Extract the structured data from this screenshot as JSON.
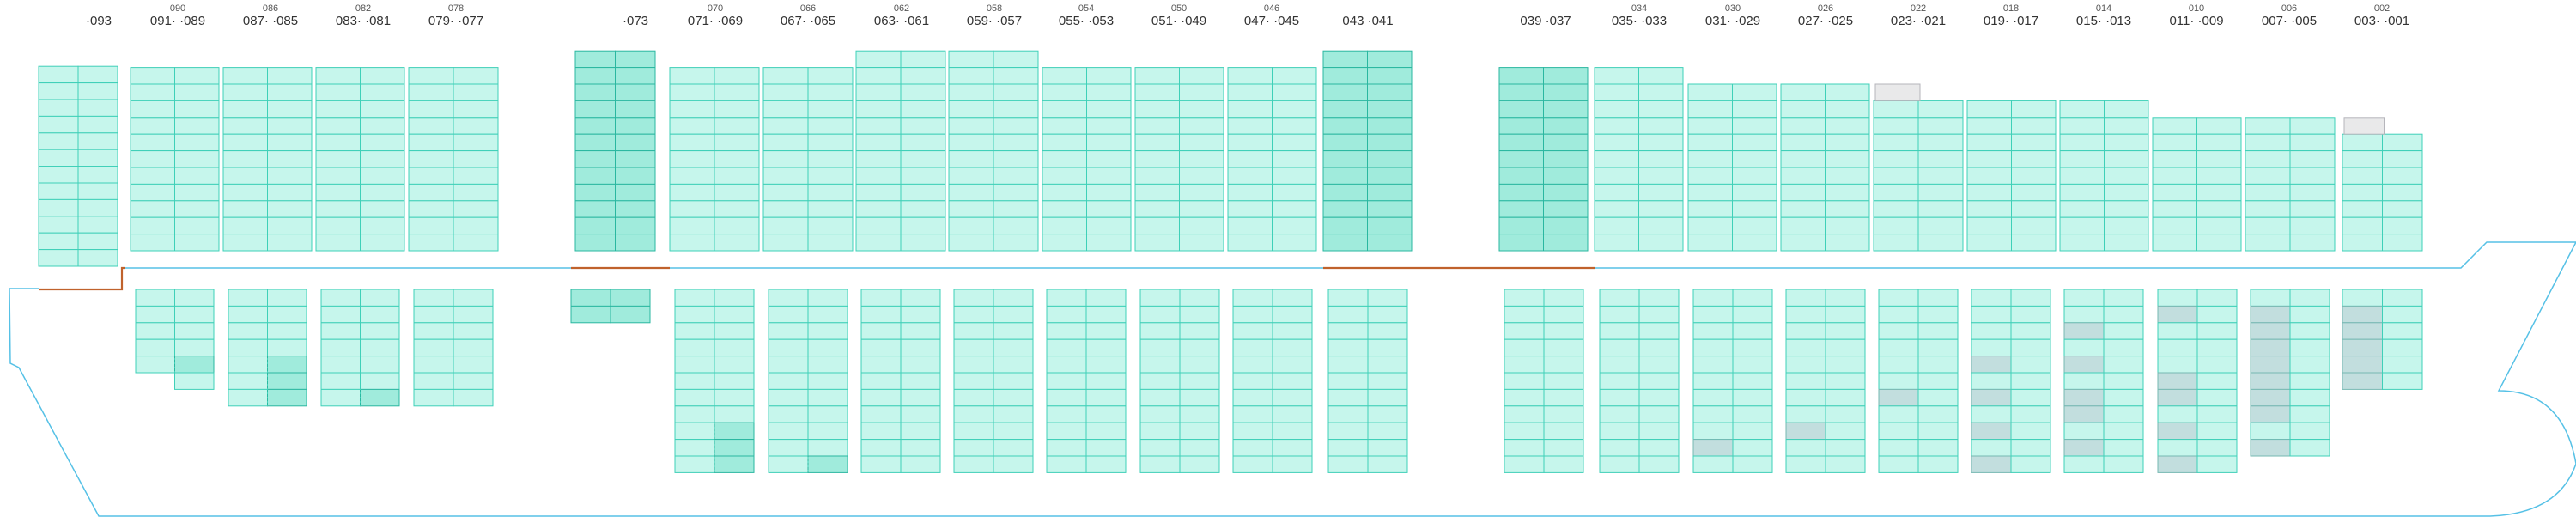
{
  "colors": {
    "hull": "#56c1e6",
    "deck_accent": "#c0622c",
    "cell_fill": "#c6f6ec",
    "cell_stroke": "#3fd0b8",
    "heavy_fill": "#a0ebdc",
    "heavy_stroke": "#2ab7a0",
    "gray_fill": "#c2dede",
    "gray_stroke": "#76b8b2",
    "empty_fill": "#e9e9ea",
    "empty_stroke": "#b5b5bb"
  },
  "bay_labels": [
    {
      "key": "b093",
      "small": "",
      "main": "·093"
    },
    {
      "key": "b090",
      "small": "090",
      "main": "091·  ·089"
    },
    {
      "key": "b086",
      "small": "086",
      "main": "087·  ·085"
    },
    {
      "key": "b082",
      "small": "082",
      "main": "083·  ·081"
    },
    {
      "key": "b078",
      "small": "078",
      "main": "079·  ·077"
    },
    {
      "key": "b073",
      "small": "",
      "main": "·073"
    },
    {
      "key": "b070",
      "small": "070",
      "main": "071·  ·069"
    },
    {
      "key": "b066",
      "small": "066",
      "main": "067·  ·065"
    },
    {
      "key": "b062",
      "small": "062",
      "main": "063·  ·061"
    },
    {
      "key": "b058",
      "small": "058",
      "main": "059·  ·057"
    },
    {
      "key": "b054",
      "small": "054",
      "main": "055·  ·053"
    },
    {
      "key": "b050",
      "small": "050",
      "main": "051·  ·049"
    },
    {
      "key": "b046",
      "small": "046",
      "main": "047·  ·045"
    },
    {
      "key": "b043",
      "small": "",
      "main": "043  ·041"
    },
    {
      "key": "b039",
      "small": "",
      "main": "039  ·037"
    },
    {
      "key": "b034",
      "small": "034",
      "main": "035·  ·033"
    },
    {
      "key": "b030",
      "small": "030",
      "main": "031·  ·029"
    },
    {
      "key": "b026",
      "small": "026",
      "main": "027·  ·025"
    },
    {
      "key": "b022",
      "small": "022",
      "main": "023·  ·021"
    },
    {
      "key": "b018",
      "small": "018",
      "main": "019·  ·017"
    },
    {
      "key": "b014",
      "small": "014",
      "main": "015·  ·013"
    },
    {
      "key": "b010",
      "small": "010",
      "main": "011·  ·009"
    },
    {
      "key": "b006",
      "small": "006",
      "main": "007·  ·005"
    },
    {
      "key": "b002",
      "small": "002",
      "main": "003·  ·001"
    }
  ],
  "bay_groups": [
    {
      "key": "b093",
      "style": "light",
      "above_tiers": 12,
      "below": []
    },
    {
      "key": "b090",
      "style": "light",
      "above_tiers": 11,
      "below": [
        {
          "style": "light",
          "tiers": 5,
          "marks": [
            {
              "col": 1,
              "tier": 4,
              "kind": "heavy"
            }
          ]
        },
        {
          "style": "light",
          "tiers": 1,
          "half": "right"
        }
      ]
    },
    {
      "key": "b086",
      "style": "light",
      "above_tiers": 11,
      "below": [
        {
          "style": "light",
          "tiers": 7,
          "marks": [
            {
              "col": 1,
              "tier": 4,
              "kind": "heavy"
            },
            {
              "col": 1,
              "tier": 5,
              "kind": "heavy"
            },
            {
              "col": 1,
              "tier": 6,
              "kind": "heavy"
            }
          ]
        }
      ]
    },
    {
      "key": "b082",
      "style": "light",
      "above_tiers": 11,
      "below": [
        {
          "style": "light",
          "tiers": 7,
          "marks": [
            {
              "col": 1,
              "tier": 6,
              "kind": "heavy"
            }
          ]
        }
      ]
    },
    {
      "key": "b078",
      "style": "light",
      "above_tiers": 11,
      "below": [
        {
          "style": "light",
          "tiers": 7,
          "marks": []
        }
      ]
    },
    {
      "key": "b073",
      "style": "heavy",
      "above_tiers": 12,
      "below": [
        {
          "style": "heavy",
          "tiers": 2,
          "marks": []
        }
      ]
    },
    {
      "key": "b070",
      "style": "light",
      "above_tiers": 11,
      "below": [
        {
          "style": "light",
          "tiers": 11,
          "marks": [
            {
              "col": 1,
              "tier": 8,
              "kind": "heavy"
            },
            {
              "col": 1,
              "tier": 9,
              "kind": "heavy"
            },
            {
              "col": 1,
              "tier": 10,
              "kind": "heavy"
            }
          ]
        }
      ]
    },
    {
      "key": "b066",
      "style": "light",
      "above_tiers": 11,
      "below": [
        {
          "style": "light",
          "tiers": 11,
          "marks": [
            {
              "col": 1,
              "tier": 10,
              "kind": "heavy"
            }
          ]
        }
      ]
    },
    {
      "key": "b062",
      "style": "light",
      "above_tiers": 12,
      "below": [
        {
          "style": "light",
          "tiers": 11,
          "marks": []
        }
      ]
    },
    {
      "key": "b058",
      "style": "light",
      "above_tiers": 12,
      "below": [
        {
          "style": "light",
          "tiers": 11,
          "marks": []
        }
      ]
    },
    {
      "key": "b054",
      "style": "light",
      "above_tiers": 11,
      "below": [
        {
          "style": "light",
          "tiers": 11,
          "marks": []
        }
      ]
    },
    {
      "key": "b050",
      "style": "light",
      "above_tiers": 11,
      "below": [
        {
          "style": "light",
          "tiers": 11,
          "marks": []
        }
      ]
    },
    {
      "key": "b046",
      "style": "light",
      "above_tiers": 11,
      "below": [
        {
          "style": "light",
          "tiers": 11,
          "marks": []
        }
      ]
    },
    {
      "key": "b043",
      "style": "heavy",
      "above_tiers": 12,
      "below": [
        {
          "style": "light",
          "tiers": 11,
          "marks": []
        }
      ]
    },
    {
      "key": "b039",
      "style": "heavy",
      "above_tiers": 11,
      "below": [
        {
          "style": "light",
          "tiers": 11,
          "marks": []
        }
      ]
    },
    {
      "key": "b034",
      "style": "light",
      "above_tiers": 11,
      "below": [
        {
          "style": "light",
          "tiers": 11,
          "marks": []
        }
      ]
    },
    {
      "key": "b030",
      "style": "light",
      "above_tiers": 10,
      "below": [
        {
          "style": "light",
          "tiers": 11,
          "marks": [
            {
              "col": 0,
              "tier": 9,
              "kind": "gray"
            }
          ]
        }
      ]
    },
    {
      "key": "b026",
      "style": "light",
      "above_tiers": 10,
      "below": [
        {
          "style": "light",
          "tiers": 11,
          "marks": [
            {
              "col": 0,
              "tier": 8,
              "kind": "gray"
            }
          ]
        }
      ]
    },
    {
      "key": "b022",
      "style": "light",
      "above_tiers": 9,
      "empty_top": true,
      "below": [
        {
          "style": "light",
          "tiers": 11,
          "marks": [
            {
              "col": 0,
              "tier": 6,
              "kind": "gray"
            }
          ]
        }
      ]
    },
    {
      "key": "b018",
      "style": "light",
      "above_tiers": 9,
      "below": [
        {
          "style": "light",
          "tiers": 11,
          "marks": [
            {
              "col": 0,
              "tier": 4,
              "kind": "gray"
            },
            {
              "col": 0,
              "tier": 6,
              "kind": "gray"
            },
            {
              "col": 0,
              "tier": 8,
              "kind": "gray"
            },
            {
              "col": 0,
              "tier": 10,
              "kind": "gray"
            }
          ]
        }
      ]
    },
    {
      "key": "b014",
      "style": "light",
      "above_tiers": 9,
      "below": [
        {
          "style": "light",
          "tiers": 11,
          "marks": [
            {
              "col": 0,
              "tier": 2,
              "kind": "gray"
            },
            {
              "col": 0,
              "tier": 4,
              "kind": "gray"
            },
            {
              "col": 0,
              "tier": 6,
              "kind": "gray"
            },
            {
              "col": 0,
              "tier": 7,
              "kind": "gray"
            },
            {
              "col": 0,
              "tier": 9,
              "kind": "gray"
            }
          ]
        }
      ]
    },
    {
      "key": "b010",
      "style": "light",
      "above_tiers": 8,
      "below": [
        {
          "style": "light",
          "tiers": 11,
          "marks": [
            {
              "col": 0,
              "tier": 1,
              "kind": "gray"
            },
            {
              "col": 0,
              "tier": 5,
              "kind": "gray"
            },
            {
              "col": 0,
              "tier": 6,
              "kind": "gray"
            },
            {
              "col": 0,
              "tier": 8,
              "kind": "gray"
            },
            {
              "col": 0,
              "tier": 10,
              "kind": "gray"
            }
          ]
        }
      ]
    },
    {
      "key": "b006",
      "style": "light",
      "above_tiers": 8,
      "below": [
        {
          "style": "light",
          "tiers": 10,
          "marks": [
            {
              "col": 0,
              "tier": 1,
              "kind": "gray"
            },
            {
              "col": 0,
              "tier": 2,
              "kind": "gray"
            },
            {
              "col": 0,
              "tier": 3,
              "kind": "gray"
            },
            {
              "col": 0,
              "tier": 4,
              "kind": "gray"
            },
            {
              "col": 0,
              "tier": 5,
              "kind": "gray"
            },
            {
              "col": 0,
              "tier": 6,
              "kind": "gray"
            },
            {
              "col": 0,
              "tier": 7,
              "kind": "gray"
            },
            {
              "col": 0,
              "tier": 9,
              "kind": "gray"
            }
          ]
        }
      ]
    },
    {
      "key": "b002",
      "style": "light",
      "above_tiers": 7,
      "empty_top": true,
      "below": [
        {
          "style": "light",
          "tiers": 6,
          "marks": [
            {
              "col": 0,
              "tier": 1,
              "kind": "gray"
            },
            {
              "col": 0,
              "tier": 2,
              "kind": "gray"
            },
            {
              "col": 0,
              "tier": 3,
              "kind": "gray"
            },
            {
              "col": 0,
              "tier": 4,
              "kind": "gray"
            },
            {
              "col": 0,
              "tier": 5,
              "kind": "gray"
            }
          ]
        }
      ]
    }
  ]
}
